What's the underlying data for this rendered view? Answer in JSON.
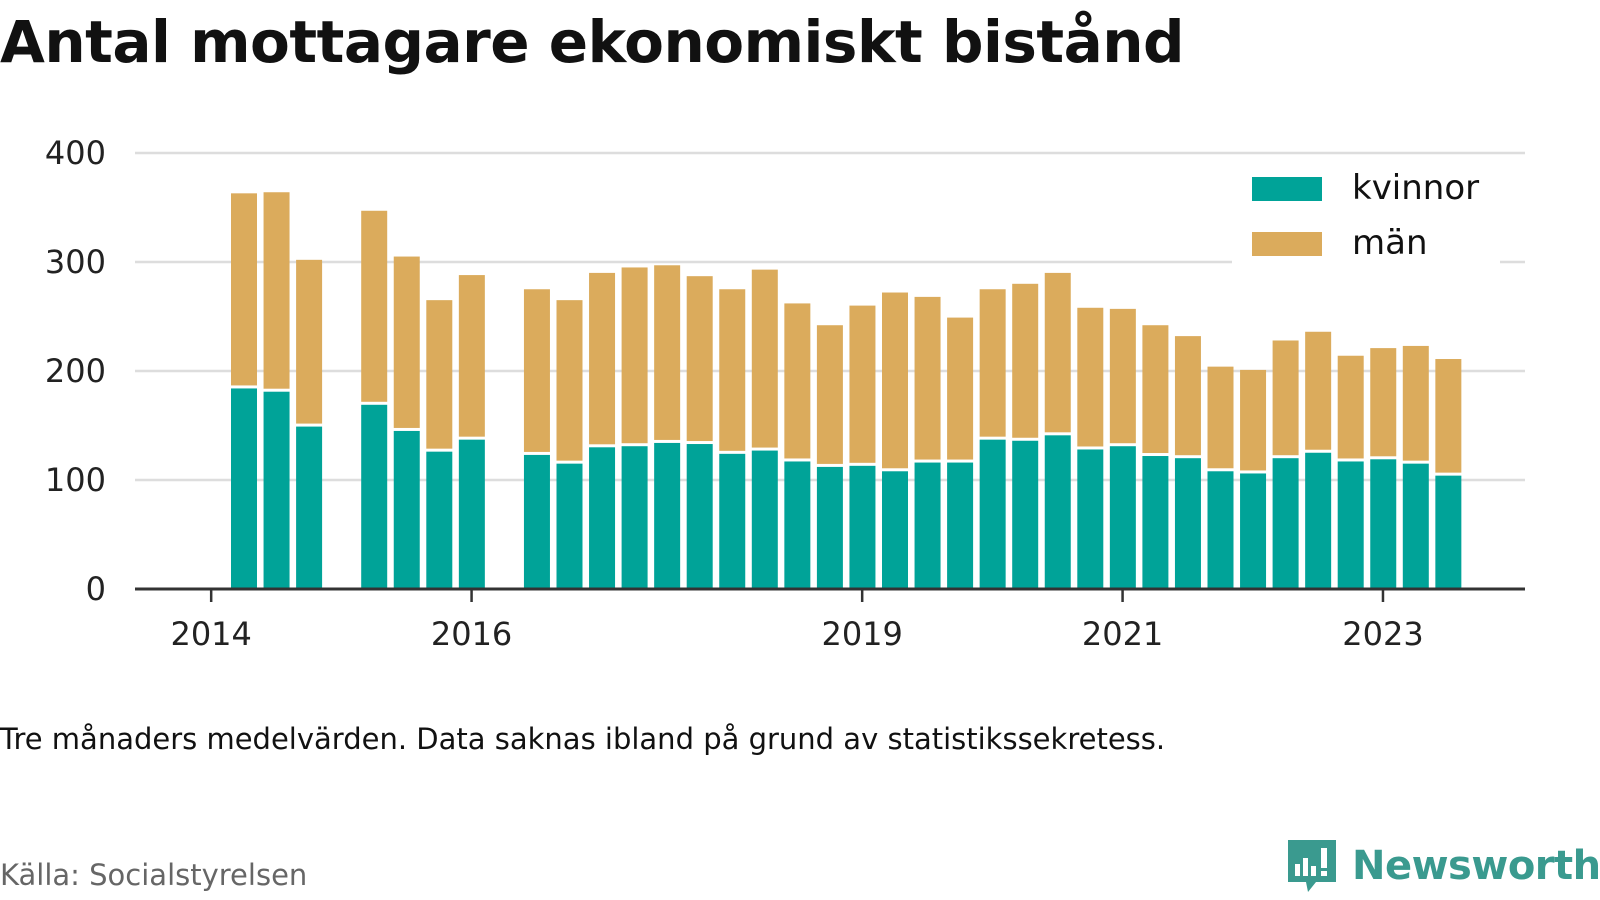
{
  "title": "Antal mottagare ekonomiskt bistånd",
  "note": "Tre månaders medelvärden. Data saknas ibland på grund av statistikssekretess.",
  "source": "Källa: Socialstyrelsen",
  "brand": "Newsworthy",
  "colors": {
    "kvinnor": "#00a398",
    "man": "#dbab5c",
    "axis": "#333333",
    "grid": "#dddddd",
    "brand": "#3a9a8f"
  },
  "chart_data": {
    "type": "bar",
    "stacked": true,
    "ylim": [
      0,
      400
    ],
    "yticks": [
      0,
      100,
      200,
      300,
      400
    ],
    "xticks": [
      "2014",
      "2016",
      "2019",
      "2021",
      "2023"
    ],
    "grid": true,
    "legend_position": "top-right",
    "categories": [
      "2014Q2",
      "2014Q3",
      "2014Q4",
      "2015Q1",
      "2015Q2",
      "2015Q3",
      "2015Q4",
      "2016Q1",
      "2016Q2",
      "2016Q3",
      "2016Q4",
      "2017Q1",
      "2017Q2",
      "2017Q3",
      "2017Q4",
      "2018Q1",
      "2018Q2",
      "2018Q3",
      "2018Q4",
      "2019Q1",
      "2019Q2",
      "2019Q3",
      "2019Q4",
      "2020Q1",
      "2020Q2",
      "2020Q3",
      "2020Q4",
      "2021Q1",
      "2021Q2",
      "2021Q3",
      "2021Q4",
      "2022Q1",
      "2022Q2",
      "2022Q3",
      "2022Q4",
      "2023Q1",
      "2023Q2",
      "2023Q3",
      "2023Q4",
      "2024Q1",
      "2024Q2"
    ],
    "series": [
      {
        "name": "kvinnor",
        "values": [
          184,
          181,
          149,
          null,
          169,
          145,
          126,
          137,
          null,
          123,
          115,
          130,
          131,
          134,
          133,
          124,
          127,
          117,
          112,
          113,
          108,
          116,
          116,
          137,
          136,
          141,
          128,
          131,
          122,
          120,
          108,
          106,
          120,
          125,
          117,
          119,
          115,
          104,
          null,
          null,
          null
        ]
      },
      {
        "name": "män",
        "values": [
          179,
          183,
          153,
          null,
          178,
          160,
          139,
          151,
          null,
          152,
          150,
          160,
          164,
          163,
          154,
          151,
          166,
          145,
          130,
          147,
          164,
          152,
          133,
          138,
          144,
          149,
          130,
          126,
          120,
          112,
          96,
          95,
          108,
          111,
          97,
          102,
          108,
          107,
          null,
          null,
          null
        ]
      }
    ]
  }
}
